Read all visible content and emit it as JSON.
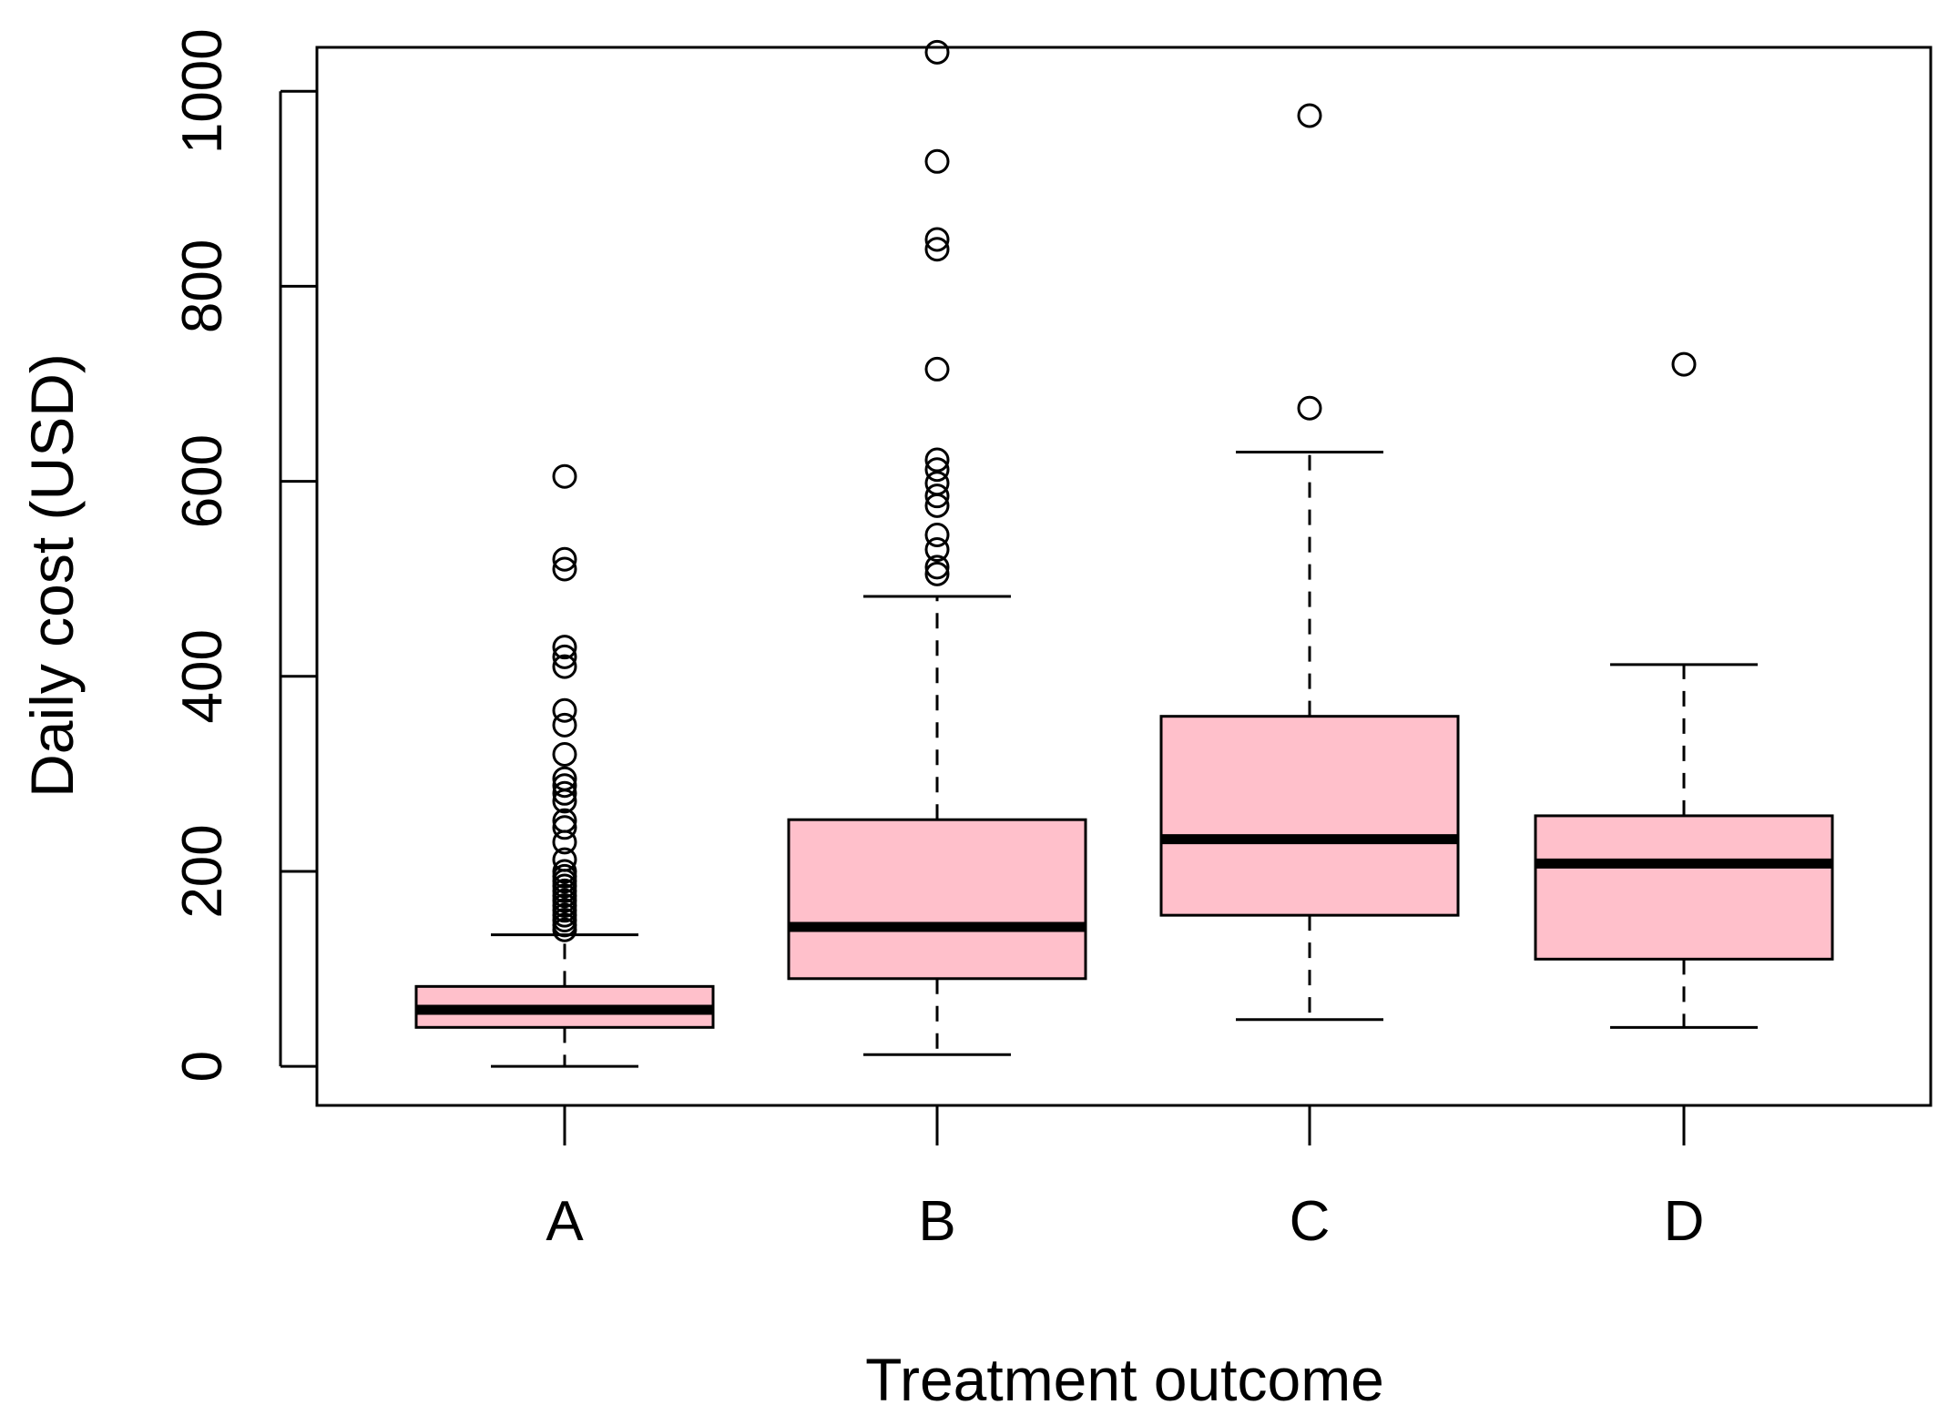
{
  "chart_data": {
    "type": "boxplot",
    "xlabel": "Treatment outcome",
    "ylabel": "Daily cost (USD)",
    "ylim": [
      -40,
      1045
    ],
    "yticks": [
      0,
      200,
      400,
      600,
      800,
      1000
    ],
    "ytick_labels": [
      "0",
      "200",
      "400",
      "600",
      "800",
      "1000"
    ],
    "categories": [
      "A",
      "B",
      "C",
      "D"
    ],
    "colors": {
      "box_fill": "#ffc0cb",
      "stroke": "#000000",
      "background": "#ffffff"
    },
    "boxes": [
      {
        "name": "A",
        "whisker_low": 0,
        "q1": 40,
        "median": 58,
        "q3": 82,
        "whisker_high": 135,
        "outliers": [
          605,
          520,
          510,
          430,
          420,
          410,
          365,
          350,
          320,
          295,
          288,
          280,
          272,
          252,
          245,
          230,
          212,
          200,
          195,
          190,
          185,
          180,
          175,
          170,
          165,
          160,
          155,
          150,
          145,
          140
        ]
      },
      {
        "name": "B",
        "whisker_low": 12,
        "q1": 90,
        "median": 143,
        "q3": 253,
        "whisker_high": 482,
        "outliers": [
          1040,
          928,
          848,
          838,
          715,
          622,
          612,
          598,
          585,
          575,
          545,
          530,
          512,
          505
        ]
      },
      {
        "name": "C",
        "whisker_low": 48,
        "q1": 155,
        "median": 233,
        "q3": 359,
        "whisker_high": 630,
        "outliers": [
          975,
          675
        ]
      },
      {
        "name": "D",
        "whisker_low": 40,
        "q1": 110,
        "median": 208,
        "q3": 257,
        "whisker_high": 412,
        "outliers": [
          720
        ]
      }
    ]
  }
}
